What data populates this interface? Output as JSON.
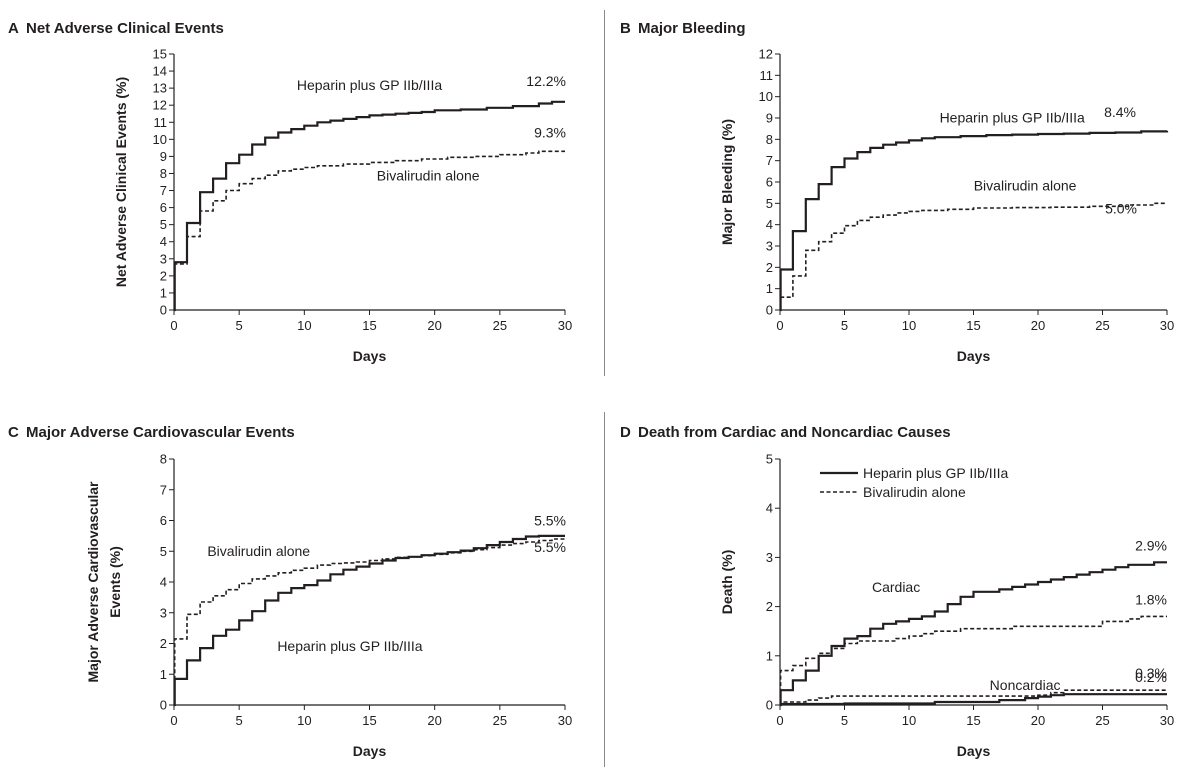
{
  "chart_data": [
    {
      "panel_letter": "A",
      "title": "Net Adverse Clinical Events",
      "type": "line",
      "step": true,
      "xlabel": "Days",
      "ylabel": "Net Adverse Clinical Events (%)",
      "xlim": [
        0,
        30
      ],
      "ylim": [
        0,
        15
      ],
      "xticks": [
        0,
        5,
        10,
        15,
        20,
        25,
        30
      ],
      "yticks": [
        0,
        1,
        2,
        3,
        4,
        5,
        6,
        7,
        8,
        9,
        10,
        11,
        12,
        13,
        14,
        15
      ],
      "legend": "none",
      "grid": false,
      "series": [
        {
          "name": "Heparin plus GP IIb/IIIa",
          "style": "solid",
          "points": [
            [
              0,
              0
            ],
            [
              0.05,
              2.8
            ],
            [
              1,
              5.1
            ],
            [
              2,
              6.9
            ],
            [
              3,
              7.7
            ],
            [
              4,
              8.6
            ],
            [
              5,
              9.1
            ],
            [
              6,
              9.7
            ],
            [
              7,
              10.1
            ],
            [
              8,
              10.4
            ],
            [
              9,
              10.6
            ],
            [
              10,
              10.8
            ],
            [
              11,
              11.0
            ],
            [
              12,
              11.1
            ],
            [
              13,
              11.2
            ],
            [
              14,
              11.3
            ],
            [
              15,
              11.4
            ],
            [
              16,
              11.45
            ],
            [
              17,
              11.5
            ],
            [
              18,
              11.55
            ],
            [
              19,
              11.6
            ],
            [
              20,
              11.7
            ],
            [
              22,
              11.75
            ],
            [
              24,
              11.85
            ],
            [
              26,
              11.95
            ],
            [
              28,
              12.1
            ],
            [
              29,
              12.2
            ],
            [
              30,
              12.2
            ]
          ],
          "end_label": "12.2%",
          "label_pos": [
            15,
            12.9
          ]
        },
        {
          "name": "Bivalirudin alone",
          "style": "dashed",
          "points": [
            [
              0,
              0
            ],
            [
              0.05,
              2.7
            ],
            [
              1,
              4.3
            ],
            [
              2,
              5.8
            ],
            [
              3,
              6.4
            ],
            [
              4,
              7.0
            ],
            [
              5,
              7.4
            ],
            [
              6,
              7.7
            ],
            [
              7,
              7.9
            ],
            [
              8,
              8.15
            ],
            [
              9,
              8.25
            ],
            [
              10,
              8.35
            ],
            [
              11,
              8.45
            ],
            [
              13,
              8.55
            ],
            [
              15,
              8.65
            ],
            [
              17,
              8.75
            ],
            [
              19,
              8.85
            ],
            [
              21,
              8.95
            ],
            [
              23,
              9.0
            ],
            [
              25,
              9.1
            ],
            [
              27,
              9.2
            ],
            [
              28,
              9.3
            ],
            [
              30,
              9.3
            ]
          ],
          "end_label": "9.3%",
          "label_pos": [
            19.5,
            7.6
          ]
        }
      ]
    },
    {
      "panel_letter": "B",
      "title": "Major Bleeding",
      "type": "line",
      "step": true,
      "xlabel": "Days",
      "ylabel": "Major Bleeding (%)",
      "xlim": [
        0,
        30
      ],
      "ylim": [
        0,
        12
      ],
      "xticks": [
        0,
        5,
        10,
        15,
        20,
        25,
        30
      ],
      "yticks": [
        0,
        1,
        2,
        3,
        4,
        5,
        6,
        7,
        8,
        9,
        10,
        11,
        12
      ],
      "legend": "none",
      "grid": false,
      "series": [
        {
          "name": "Heparin plus GP IIb/IIIa",
          "style": "solid",
          "points": [
            [
              0,
              0
            ],
            [
              0.05,
              1.9
            ],
            [
              1,
              3.7
            ],
            [
              2,
              5.2
            ],
            [
              3,
              5.9
            ],
            [
              4,
              6.7
            ],
            [
              5,
              7.1
            ],
            [
              6,
              7.4
            ],
            [
              7,
              7.6
            ],
            [
              8,
              7.75
            ],
            [
              9,
              7.85
            ],
            [
              10,
              7.95
            ],
            [
              11,
              8.05
            ],
            [
              12,
              8.1
            ],
            [
              14,
              8.15
            ],
            [
              16,
              8.2
            ],
            [
              18,
              8.22
            ],
            [
              20,
              8.25
            ],
            [
              22,
              8.27
            ],
            [
              24,
              8.3
            ],
            [
              26,
              8.32
            ],
            [
              28,
              8.37
            ],
            [
              30,
              8.4
            ]
          ],
          "end_label": "8.4%",
          "label_pos": [
            18,
            8.8
          ]
        },
        {
          "name": "Bivalirudin alone",
          "style": "dashed",
          "points": [
            [
              0,
              0
            ],
            [
              0.05,
              0.6
            ],
            [
              1,
              1.6
            ],
            [
              2,
              2.8
            ],
            [
              3,
              3.2
            ],
            [
              4,
              3.6
            ],
            [
              5,
              3.95
            ],
            [
              6,
              4.2
            ],
            [
              7,
              4.35
            ],
            [
              8,
              4.45
            ],
            [
              9,
              4.55
            ],
            [
              10,
              4.62
            ],
            [
              11,
              4.67
            ],
            [
              13,
              4.72
            ],
            [
              15,
              4.78
            ],
            [
              18,
              4.8
            ],
            [
              21,
              4.82
            ],
            [
              24,
              4.86
            ],
            [
              27,
              4.92
            ],
            [
              29,
              5.0
            ],
            [
              30,
              5.0
            ]
          ],
          "end_label": "5.0%",
          "label_pos": [
            19,
            5.6
          ]
        }
      ]
    },
    {
      "panel_letter": "C",
      "title": "Major Adverse Cardiovascular Events",
      "type": "line",
      "step": true,
      "xlabel": "Days",
      "ylabel": "Major Adverse Cardiovascular Events (%)",
      "ylabel_lines": [
        "Major Adverse Cardiovascular",
        "Events (%)"
      ],
      "xlim": [
        0,
        30
      ],
      "ylim": [
        0,
        8
      ],
      "xticks": [
        0,
        5,
        10,
        15,
        20,
        25,
        30
      ],
      "yticks": [
        0,
        1,
        2,
        3,
        4,
        5,
        6,
        7,
        8
      ],
      "legend": "none",
      "grid": false,
      "series": [
        {
          "name": "Bivalirudin alone",
          "style": "dashed",
          "points": [
            [
              0,
              0
            ],
            [
              0.05,
              2.15
            ],
            [
              1,
              2.95
            ],
            [
              2,
              3.35
            ],
            [
              3,
              3.55
            ],
            [
              4,
              3.75
            ],
            [
              5,
              3.95
            ],
            [
              6,
              4.1
            ],
            [
              7,
              4.2
            ],
            [
              8,
              4.3
            ],
            [
              9,
              4.38
            ],
            [
              10,
              4.45
            ],
            [
              11,
              4.55
            ],
            [
              12,
              4.6
            ],
            [
              13,
              4.62
            ],
            [
              14,
              4.65
            ],
            [
              15,
              4.7
            ],
            [
              16,
              4.75
            ],
            [
              17,
              4.8
            ],
            [
              18,
              4.82
            ],
            [
              19,
              4.86
            ],
            [
              20,
              4.9
            ],
            [
              21,
              4.95
            ],
            [
              22,
              5.0
            ],
            [
              23,
              5.05
            ],
            [
              24,
              5.12
            ],
            [
              25,
              5.2
            ],
            [
              26,
              5.25
            ],
            [
              27,
              5.3
            ],
            [
              28,
              5.35
            ],
            [
              29,
              5.4
            ],
            [
              30,
              5.45
            ]
          ],
          "end_label": "5.5%",
          "label_pos": [
            6.5,
            4.85
          ]
        },
        {
          "name": "Heparin plus GP IIb/IIIa",
          "style": "solid",
          "points": [
            [
              0,
              0
            ],
            [
              0.05,
              0.85
            ],
            [
              1,
              1.45
            ],
            [
              2,
              1.85
            ],
            [
              3,
              2.25
            ],
            [
              4,
              2.45
            ],
            [
              5,
              2.75
            ],
            [
              6,
              3.05
            ],
            [
              7,
              3.4
            ],
            [
              8,
              3.65
            ],
            [
              9,
              3.8
            ],
            [
              10,
              3.9
            ],
            [
              11,
              4.05
            ],
            [
              12,
              4.25
            ],
            [
              13,
              4.4
            ],
            [
              14,
              4.5
            ],
            [
              15,
              4.6
            ],
            [
              16,
              4.7
            ],
            [
              17,
              4.78
            ],
            [
              18,
              4.82
            ],
            [
              19,
              4.87
            ],
            [
              20,
              4.92
            ],
            [
              21,
              4.97
            ],
            [
              22,
              5.02
            ],
            [
              23,
              5.1
            ],
            [
              24,
              5.2
            ],
            [
              25,
              5.3
            ],
            [
              26,
              5.4
            ],
            [
              27,
              5.48
            ],
            [
              28,
              5.5
            ],
            [
              30,
              5.5
            ]
          ],
          "end_label": "5.5%",
          "label_pos": [
            13.5,
            1.75
          ]
        }
      ]
    },
    {
      "panel_letter": "D",
      "title": "Death from Cardiac and Noncardiac Causes",
      "type": "line",
      "step": true,
      "xlabel": "Days",
      "ylabel": "Death (%)",
      "xlim": [
        0,
        30
      ],
      "ylim": [
        0,
        5
      ],
      "xticks": [
        0,
        5,
        10,
        15,
        20,
        25,
        30
      ],
      "yticks": [
        0,
        1,
        2,
        3,
        4,
        5
      ],
      "legend": "top-left",
      "legend_entries": [
        {
          "label": "Heparin plus GP IIb/IIIa",
          "style": "solid"
        },
        {
          "label": "Bivalirudin alone",
          "style": "dashed"
        }
      ],
      "grid": false,
      "group_labels": [
        {
          "text": "Cardiac",
          "pos": [
            9,
            2.3
          ]
        },
        {
          "text": "Noncardiac",
          "pos": [
            19,
            0.3
          ]
        }
      ],
      "series": [
        {
          "name": "Heparin plus GP IIb/IIIa",
          "group": "Cardiac",
          "style": "solid",
          "points": [
            [
              0,
              0
            ],
            [
              0.05,
              0.3
            ],
            [
              1,
              0.5
            ],
            [
              2,
              0.7
            ],
            [
              3,
              1.0
            ],
            [
              4,
              1.2
            ],
            [
              5,
              1.35
            ],
            [
              6,
              1.4
            ],
            [
              7,
              1.55
            ],
            [
              8,
              1.65
            ],
            [
              9,
              1.7
            ],
            [
              10,
              1.75
            ],
            [
              11,
              1.8
            ],
            [
              12,
              1.9
            ],
            [
              13,
              2.05
            ],
            [
              14,
              2.2
            ],
            [
              15,
              2.3
            ],
            [
              17,
              2.35
            ],
            [
              18,
              2.4
            ],
            [
              19,
              2.45
            ],
            [
              20,
              2.5
            ],
            [
              21,
              2.55
            ],
            [
              22,
              2.6
            ],
            [
              23,
              2.65
            ],
            [
              24,
              2.7
            ],
            [
              25,
              2.75
            ],
            [
              26,
              2.8
            ],
            [
              27,
              2.85
            ],
            [
              29,
              2.9
            ],
            [
              30,
              2.9
            ]
          ],
          "end_label": "2.9%"
        },
        {
          "name": "Bivalirudin alone",
          "group": "Cardiac",
          "style": "dashed",
          "points": [
            [
              0,
              0
            ],
            [
              0.05,
              0.7
            ],
            [
              1,
              0.8
            ],
            [
              2,
              0.95
            ],
            [
              3,
              1.05
            ],
            [
              4,
              1.15
            ],
            [
              5,
              1.25
            ],
            [
              6,
              1.3
            ],
            [
              9,
              1.35
            ],
            [
              10,
              1.4
            ],
            [
              11,
              1.45
            ],
            [
              12,
              1.5
            ],
            [
              14,
              1.55
            ],
            [
              18,
              1.6
            ],
            [
              23,
              1.6
            ],
            [
              25,
              1.7
            ],
            [
              27,
              1.75
            ],
            [
              28,
              1.8
            ],
            [
              30,
              1.8
            ]
          ],
          "end_label": "1.8%"
        },
        {
          "name": "Heparin plus GP IIb/IIIa",
          "group": "Noncardiac",
          "style": "solid",
          "points": [
            [
              0,
              0
            ],
            [
              0.05,
              0.02
            ],
            [
              5,
              0.03
            ],
            [
              12,
              0.06
            ],
            [
              17,
              0.1
            ],
            [
              19,
              0.14
            ],
            [
              20,
              0.17
            ],
            [
              21,
              0.2
            ],
            [
              22,
              0.22
            ],
            [
              30,
              0.22
            ]
          ],
          "end_label": "0.2%"
        },
        {
          "name": "Bivalirudin alone",
          "group": "Noncardiac",
          "style": "dashed",
          "points": [
            [
              0,
              0
            ],
            [
              0.05,
              0.06
            ],
            [
              2,
              0.1
            ],
            [
              3,
              0.14
            ],
            [
              4,
              0.18
            ],
            [
              20,
              0.2
            ],
            [
              21,
              0.25
            ],
            [
              22,
              0.3
            ],
            [
              30,
              0.3
            ]
          ],
          "end_label": "0.3%"
        }
      ]
    }
  ]
}
